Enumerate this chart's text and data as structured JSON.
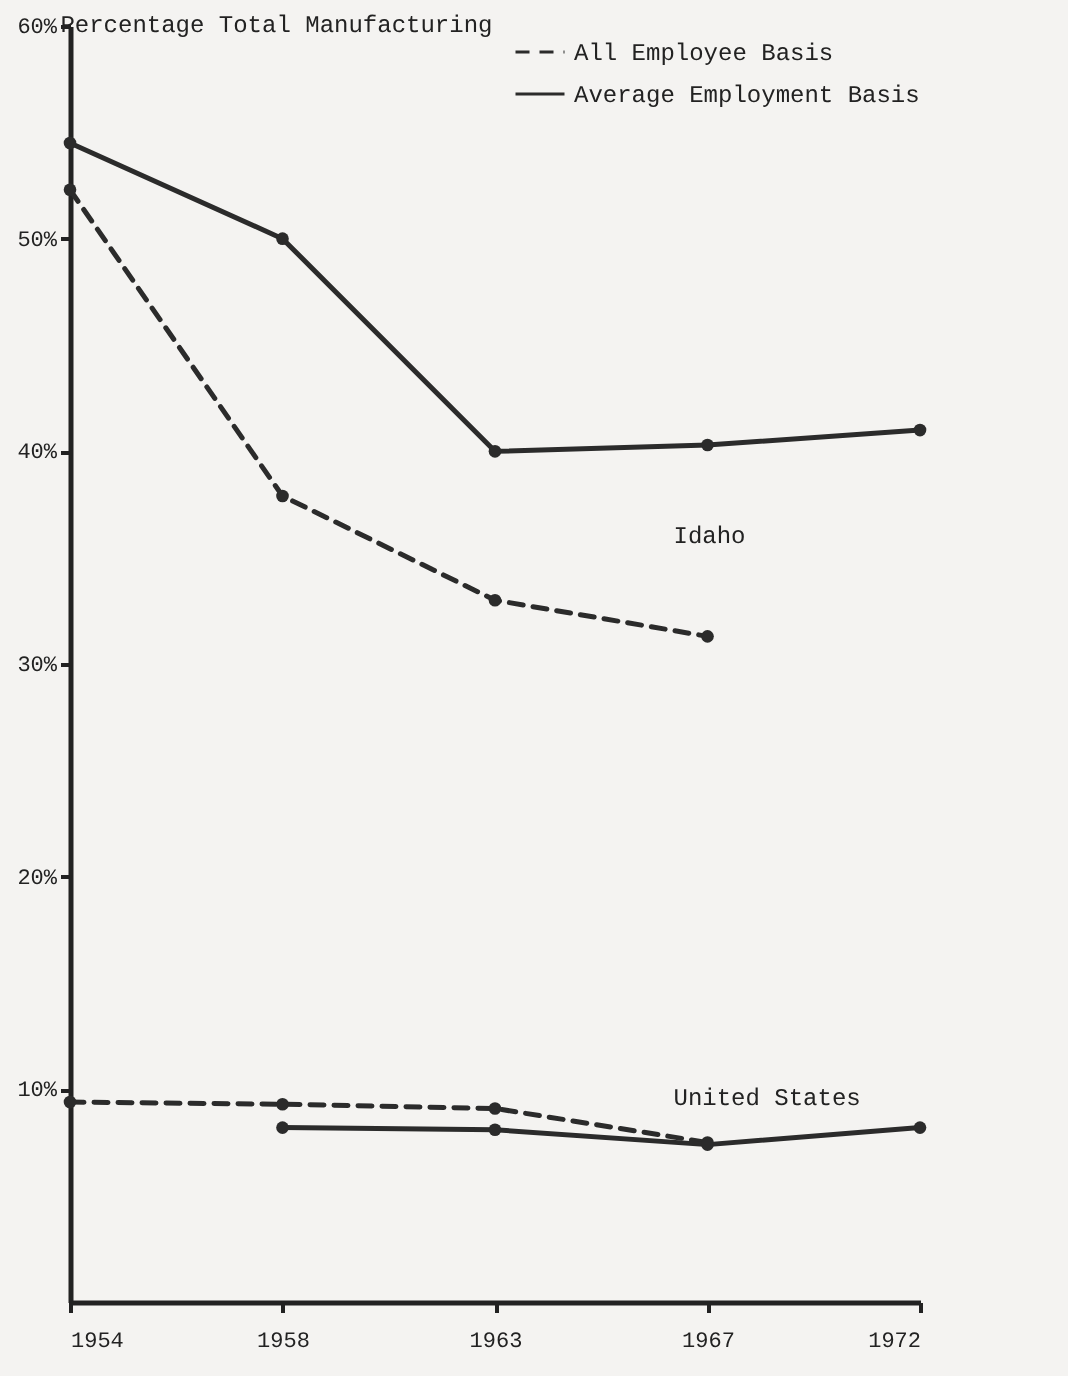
{
  "chart_data": {
    "type": "line",
    "ylabel": "Percentage Total Manufacturing",
    "categories": [
      "1954",
      "1958",
      "1963",
      "1967",
      "1972"
    ],
    "series": [
      {
        "name": "All Employee Basis",
        "color": "#2b2b2b",
        "line_style": "dashed",
        "values": [
          52.3,
          37.9,
          33.0,
          31.3,
          null
        ]
      },
      {
        "name": "Average Employment Basis",
        "color": "#2b2b2b",
        "line_style": "solid",
        "values": [
          54.5,
          50.0,
          40.0,
          40.3,
          41.0
        ]
      },
      {
        "color": "#2b2b2b",
        "line_style": "dashed",
        "values": [
          9.4,
          9.3,
          9.1,
          7.5,
          null
        ]
      },
      {
        "color": "#2b2b2b",
        "line_style": "solid",
        "values": [
          null,
          8.2,
          8.1,
          7.4,
          8.2
        ]
      }
    ],
    "ylim": [
      0,
      60
    ],
    "yticks": [
      {
        "value": 10,
        "label": "10%"
      },
      {
        "value": 20,
        "label": "20%"
      },
      {
        "value": 30,
        "label": "30%"
      },
      {
        "value": 40,
        "label": "40%"
      },
      {
        "value": 50,
        "label": "50%"
      },
      {
        "value": 60,
        "label": "60%"
      }
    ],
    "annotations": [
      "Idaho",
      "United States"
    ],
    "marker": "circle",
    "legend": "top right",
    "grid": false
  }
}
